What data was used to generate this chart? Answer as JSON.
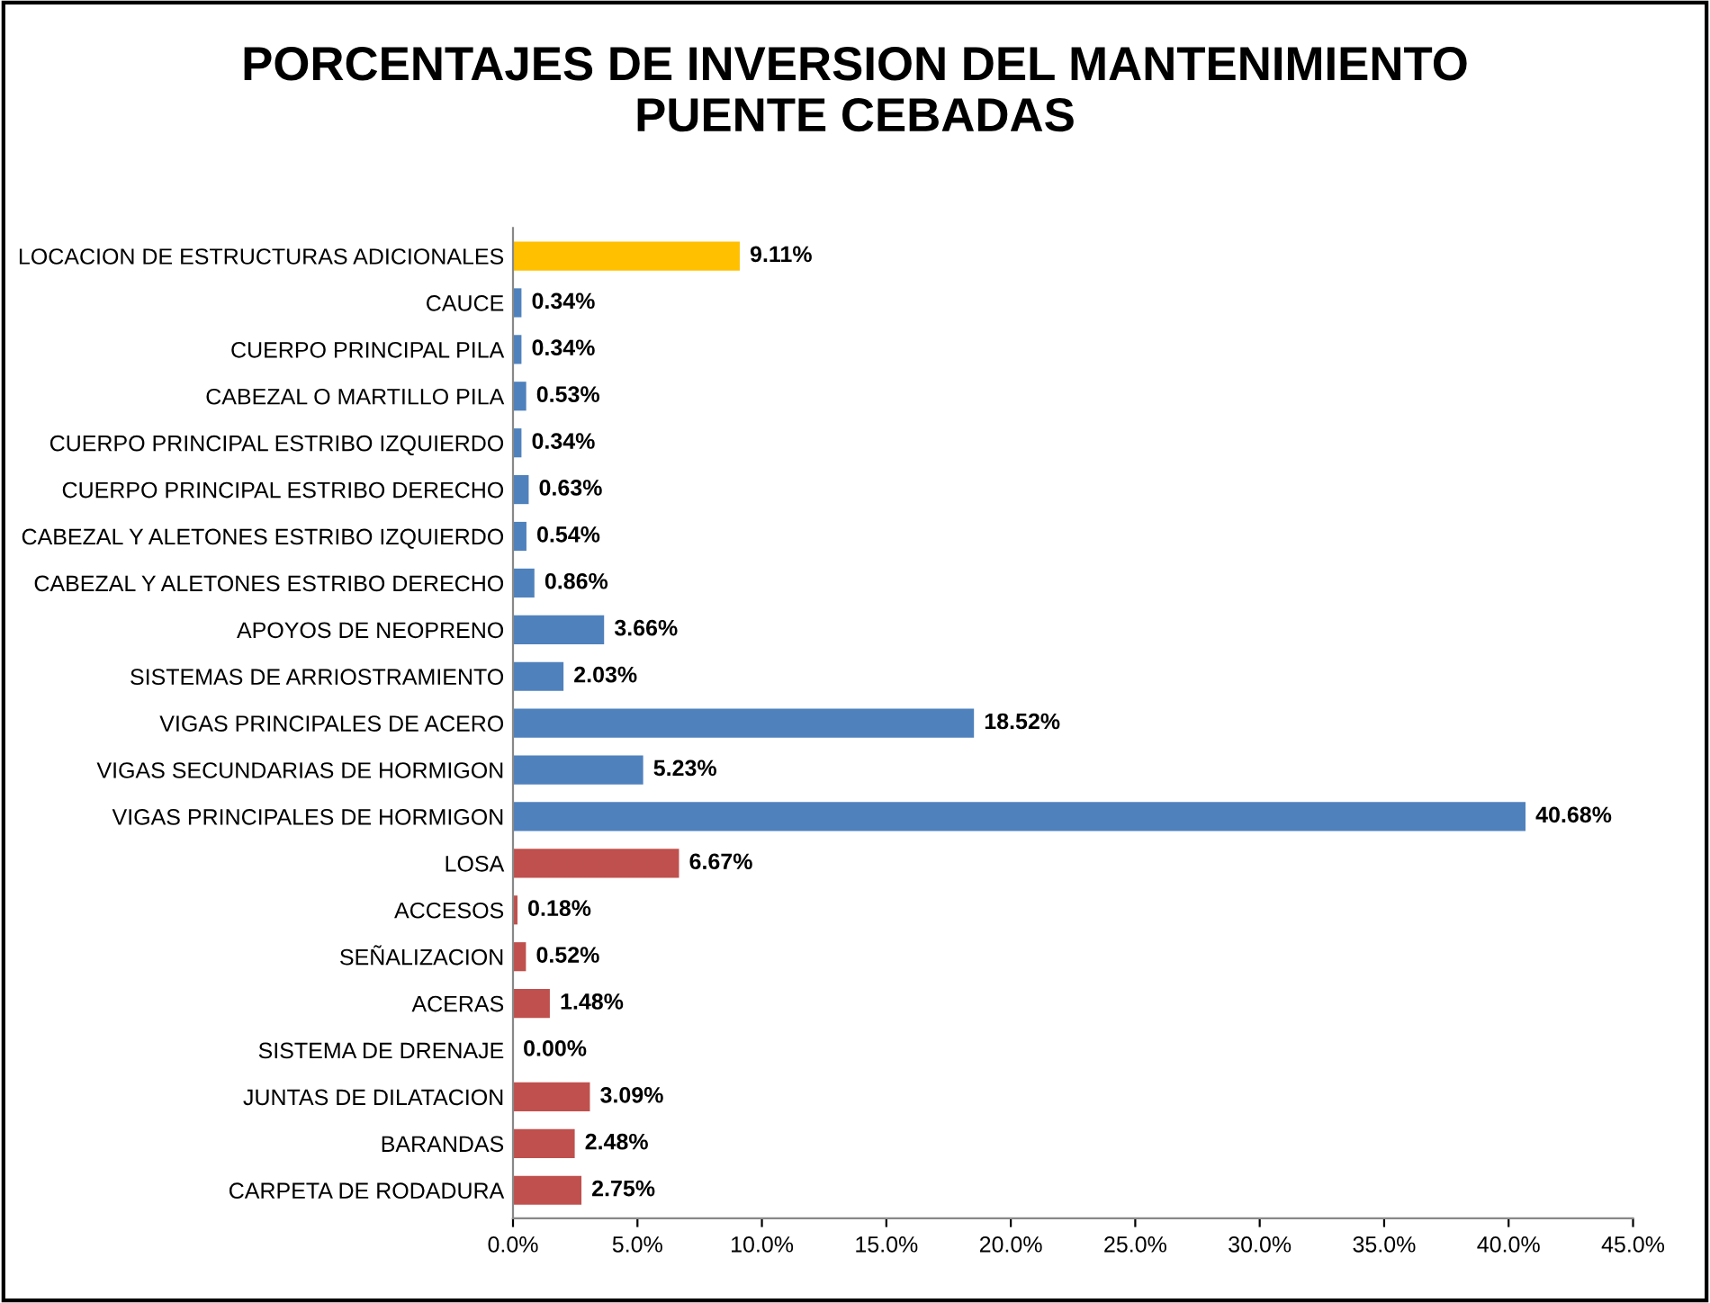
{
  "chart_data": {
    "type": "bar",
    "orientation": "horizontal",
    "title": "PORCENTAJES DE INVERSION DEL MANTENIMIENTO\nPUENTE CEBADAS",
    "categories": [
      "LOCACION DE ESTRUCTURAS ADICIONALES",
      "CAUCE",
      "CUERPO PRINCIPAL PILA",
      "CABEZAL O MARTILLO PILA",
      "CUERPO PRINCIPAL ESTRIBO IZQUIERDO",
      "CUERPO PRINCIPAL ESTRIBO DERECHO",
      "CABEZAL Y ALETONES ESTRIBO IZQUIERDO",
      "CABEZAL Y ALETONES ESTRIBO DERECHO",
      "APOYOS DE NEOPRENO",
      "SISTEMAS DE ARRIOSTRAMIENTO",
      "VIGAS PRINCIPALES DE ACERO",
      "VIGAS SECUNDARIAS DE HORMIGON",
      "VIGAS PRINCIPALES DE HORMIGON",
      "LOSA",
      "ACCESOS",
      "SEÑALIZACION",
      "ACERAS",
      "SISTEMA DE DRENAJE",
      "JUNTAS DE DILATACION",
      "BARANDAS",
      "CARPETA DE RODADURA"
    ],
    "values": [
      9.11,
      0.34,
      0.34,
      0.53,
      0.34,
      0.63,
      0.54,
      0.86,
      3.66,
      2.03,
      18.52,
      5.23,
      40.68,
      6.67,
      0.18,
      0.52,
      1.48,
      0.0,
      3.09,
      2.48,
      2.75
    ],
    "value_labels": [
      "9.11%",
      "0.34%",
      "0.34%",
      "0.53%",
      "0.34%",
      "0.63%",
      "0.54%",
      "0.86%",
      "3.66%",
      "2.03%",
      "18.52%",
      "5.23%",
      "40.68%",
      "6.67%",
      "0.18%",
      "0.52%",
      "1.48%",
      "0.00%",
      "3.09%",
      "2.48%",
      "2.75%"
    ],
    "colors": [
      "#ffc000",
      "#4f81bd",
      "#4f81bd",
      "#4f81bd",
      "#4f81bd",
      "#4f81bd",
      "#4f81bd",
      "#4f81bd",
      "#4f81bd",
      "#4f81bd",
      "#4f81bd",
      "#4f81bd",
      "#4f81bd",
      "#c0504d",
      "#c0504d",
      "#c0504d",
      "#c0504d",
      "#c0504d",
      "#c0504d",
      "#c0504d",
      "#c0504d"
    ],
    "xlim": [
      0,
      45
    ],
    "xticks": [
      {
        "value": 0,
        "label": "0.0%"
      },
      {
        "value": 5,
        "label": "5.0%"
      },
      {
        "value": 10,
        "label": "10.0%"
      },
      {
        "value": 15,
        "label": "15.0%"
      },
      {
        "value": 20,
        "label": "20.0%"
      },
      {
        "value": 25,
        "label": "25.0%"
      },
      {
        "value": 30,
        "label": "30.0%"
      },
      {
        "value": 35,
        "label": "35.0%"
      },
      {
        "value": 40,
        "label": "40.0%"
      },
      {
        "value": 45,
        "label": "45.0%"
      }
    ],
    "grid": false,
    "legend": false
  }
}
